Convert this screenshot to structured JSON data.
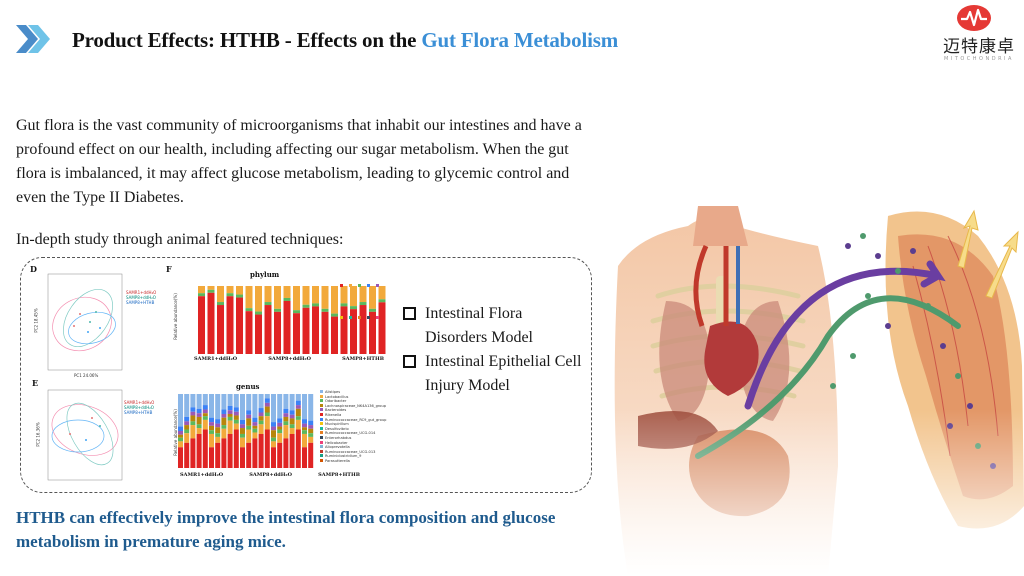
{
  "header": {
    "title_main": "Product Effects: HTHB - Effects on the ",
    "title_accent": "Gut Flora Metabolism",
    "icon": "double-chevron-right-icon",
    "accent_color": "#3b8fd6"
  },
  "logo": {
    "name_cn": "迈特康卓",
    "name_en": "MITOCHONDRIA",
    "mark": "heartbeat-logo-icon",
    "color": "#e53935"
  },
  "intro": "Gut flora is the vast community of microorganisms that inhabit our intestines and have a profound effect on our health, including affecting our sugar metabolism. When the gut flora is imbalanced, it may affect glucose metabolism, leading to glycemic control and even the Type II Diabetes.",
  "study_heading": "In-depth study through animal featured techniques:",
  "figures": {
    "panel_d": {
      "label": "D",
      "xlabel": "PC1 24.06%",
      "ylabel": "PC2 18.45%",
      "legend": [
        "SAMR1+ddH₂O",
        "SAMP8+ddH₂O",
        "SAMP8+HTHB"
      ]
    },
    "panel_e": {
      "label": "E",
      "ylabel": "PC2 16.36%",
      "legend": [
        "SAMR1+ddH₂O",
        "SAMP8+ddH₂O",
        "SAMP8+HTHB"
      ]
    },
    "phylum": {
      "label": "F",
      "title": "phylum",
      "ylabel": "Relative abundance(%)",
      "groups": [
        "SAMR1+ddH₂O",
        "SAMP8+ddH₂O",
        "SAMP8+HTHB"
      ]
    },
    "genus": {
      "title": "genus",
      "ylabel": "Relative abundance(%)",
      "groups": [
        "SAMR1+ddH₂O",
        "SAMP8+ddH₂O",
        "SAMP8+HTHB"
      ],
      "legend": [
        "Alistipes",
        "Lactobacillus",
        "Odoribacter",
        "Lachnospiraceae_NK4A136_group",
        "Bacteroides",
        "Rikenella",
        "Ruminococcaceae_RC9_gut_group",
        "Mucispirillum",
        "Desulfovibrio",
        "Ruminococcaceae_UCG-014",
        "Enterorhabdus",
        "Helicobacter",
        "Alloprevotella",
        "Ruminococcaceae_UCG-013",
        "Ruminiclostridium_9",
        "Parasutterella"
      ]
    }
  },
  "checklist": [
    "Intestinal Flora Disorders Model",
    "Intestinal Epithelial Cell Injury Model"
  ],
  "conclusion": "HTHB can effectively improve the intestinal flora composition and glucose metabolism in premature aging mice."
}
